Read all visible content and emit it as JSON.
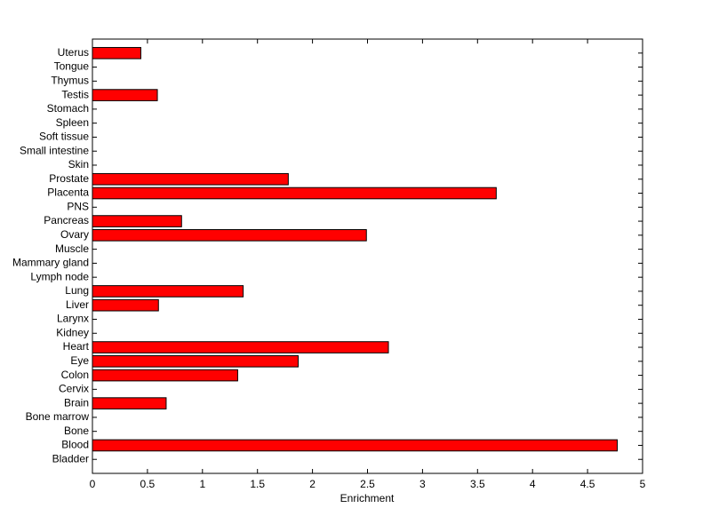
{
  "chart_data": {
    "type": "barh",
    "x_label": "Enrichment",
    "categories": [
      "Bladder",
      "Blood",
      "Bone",
      "Bone marrow",
      "Brain",
      "Cervix",
      "Colon",
      "Eye",
      "Heart",
      "Kidney",
      "Larynx",
      "Liver",
      "Lung",
      "Lymph node",
      "Mammary gland",
      "Muscle",
      "Ovary",
      "Pancreas",
      "PNS",
      "Placenta",
      "Prostate",
      "Skin",
      "Small intestine",
      "Soft tissue",
      "Spleen",
      "Stomach",
      "Testis",
      "Thymus",
      "Tongue",
      "Uterus"
    ],
    "values": [
      0,
      4.77,
      0,
      0,
      0.67,
      0,
      1.32,
      1.87,
      2.69,
      0,
      0,
      0.6,
      1.37,
      0,
      0,
      0,
      2.49,
      0.81,
      0,
      3.67,
      1.78,
      0,
      0,
      0,
      0,
      0,
      0.59,
      0,
      0,
      0.44
    ],
    "color": "#ff0000",
    "xlim": [
      0,
      5
    ],
    "xticks": [
      0,
      0.5,
      1,
      1.5,
      2,
      2.5,
      3,
      3.5,
      4,
      4.5,
      5
    ]
  }
}
